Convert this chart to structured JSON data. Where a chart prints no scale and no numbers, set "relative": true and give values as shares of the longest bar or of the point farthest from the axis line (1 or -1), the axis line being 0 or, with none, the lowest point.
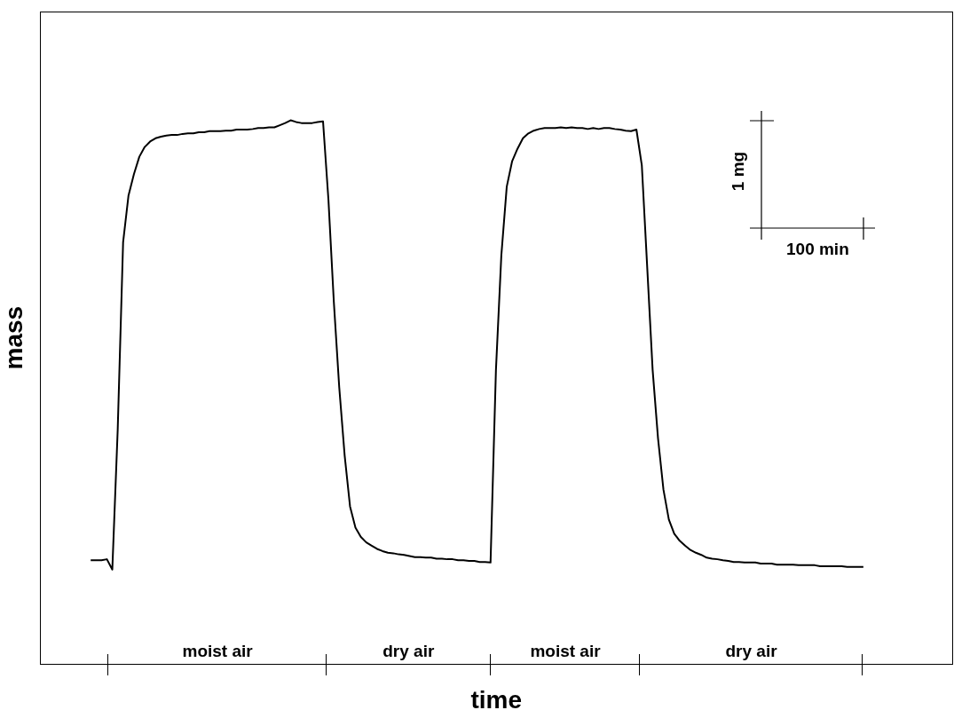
{
  "chart_data": {
    "type": "line",
    "xlabel": "time",
    "ylabel": "mass",
    "relative": true,
    "legend": false,
    "marker": "none",
    "line_style": "solid",
    "annotations": [
      "moist air",
      "dry air",
      "moist air",
      "dry air",
      "1 mg",
      "100 min"
    ],
    "categories": [
      null,
      null,
      null,
      null,
      null,
      null,
      null,
      null,
      null,
      null,
      null,
      null,
      null,
      null,
      null,
      null,
      null,
      null,
      null,
      null,
      null,
      null,
      null,
      null,
      null,
      null,
      null,
      null,
      null,
      null,
      null,
      null,
      null,
      null,
      null,
      null,
      null,
      null,
      null,
      null,
      null,
      null,
      null,
      null,
      null,
      null,
      null,
      null,
      null,
      null,
      null,
      null,
      null,
      null,
      null,
      null,
      null,
      null,
      null,
      null,
      null,
      null,
      null,
      null,
      null,
      null,
      null,
      null,
      null,
      null,
      null,
      null,
      null,
      null,
      null,
      null,
      null,
      null,
      null,
      null,
      null,
      null,
      null,
      null,
      null,
      null,
      null,
      null,
      null,
      null,
      null,
      null,
      null,
      null,
      null,
      null,
      null,
      null,
      null,
      null,
      null,
      null,
      null,
      null,
      null,
      null,
      null,
      null,
      null,
      null,
      null,
      null,
      null,
      null,
      null,
      null,
      null,
      null,
      null,
      null,
      null,
      null,
      null,
      null,
      null,
      null,
      null,
      null,
      null,
      null,
      null,
      null,
      null,
      null,
      null,
      null,
      null,
      null,
      null,
      null,
      null,
      null,
      null,
      null
    ],
    "series": [
      {
        "color": "#000000",
        "values": [
          0.191,
          0.191,
          0.191,
          0.193,
          0.174,
          0.431,
          0.776,
          0.862,
          0.901,
          0.933,
          0.951,
          0.961,
          0.967,
          0.97,
          0.972,
          0.973,
          0.973,
          0.975,
          0.976,
          0.976,
          0.978,
          0.978,
          0.98,
          0.98,
          0.98,
          0.981,
          0.981,
          0.983,
          0.983,
          0.983,
          0.984,
          0.986,
          0.986,
          0.987,
          0.987,
          0.991,
          0.995,
          1,
          0.997,
          0.995,
          0.995,
          0.995,
          0.997,
          0.998,
          0.854,
          0.666,
          0.509,
          0.384,
          0.29,
          0.251,
          0.234,
          0.224,
          0.218,
          0.212,
          0.208,
          0.205,
          0.204,
          0.202,
          0.201,
          0.199,
          0.197,
          0.197,
          0.196,
          0.196,
          0.194,
          0.194,
          0.193,
          0.193,
          0.191,
          0.191,
          0.19,
          0.19,
          0.188,
          0.188,
          0.187,
          0.541,
          0.752,
          0.878,
          0.925,
          0.948,
          0.967,
          0.976,
          0.981,
          0.984,
          0.986,
          0.986,
          0.986,
          0.987,
          0.986,
          0.987,
          0.986,
          0.986,
          0.984,
          0.986,
          0.984,
          0.986,
          0.986,
          0.984,
          0.983,
          0.981,
          0.98,
          0.983,
          0.917,
          0.729,
          0.541,
          0.415,
          0.321,
          0.266,
          0.24,
          0.227,
          0.218,
          0.21,
          0.205,
          0.201,
          0.196,
          0.194,
          0.193,
          0.191,
          0.19,
          0.188,
          0.188,
          0.187,
          0.187,
          0.187,
          0.185,
          0.185,
          0.185,
          0.183,
          0.183,
          0.183,
          0.183,
          0.182,
          0.182,
          0.182,
          0.182,
          0.18,
          0.18,
          0.18,
          0.18,
          0.18,
          0.179,
          0.179,
          0.179,
          0.179
        ]
      }
    ]
  }
}
